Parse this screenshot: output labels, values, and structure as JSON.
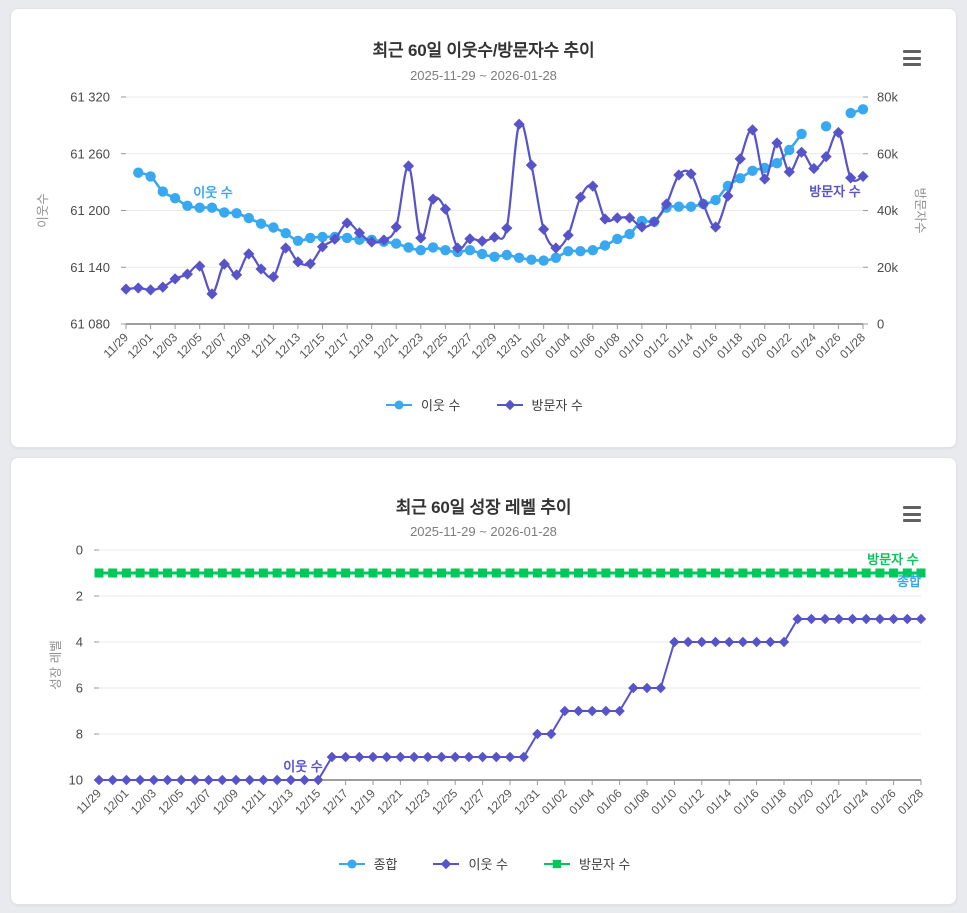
{
  "colors": {
    "neighbor_blue": "#38a8f0",
    "visitor_purple": "#5753c9",
    "visitor_green": "#03c75a",
    "grid": "#e9e9e9",
    "axis": "#3d3d3d",
    "tick_text": "#4a4a4a",
    "axis_title_text": "#909090"
  },
  "chart_data": [
    {
      "type": "line",
      "title": "최근 60일 이웃수/방문자수 추이",
      "subtitle": "2025-11-29 ~ 2026-01-28",
      "n_points": 61,
      "x_tick_labels": [
        "11/29",
        "12/01",
        "12/03",
        "12/05",
        "12/07",
        "12/09",
        "12/11",
        "12/13",
        "12/15",
        "12/17",
        "12/19",
        "12/21",
        "12/23",
        "12/25",
        "12/27",
        "12/29",
        "12/31",
        "01/02",
        "01/04",
        "01/06",
        "01/08",
        "01/10",
        "01/12",
        "01/14",
        "01/16",
        "01/18",
        "01/20",
        "01/22",
        "01/24",
        "01/26",
        "01/28"
      ],
      "y_axis_left": {
        "title": "이웃수",
        "tick_labels": [
          "61 320",
          "61 260",
          "61 200",
          "61 140",
          "61 080"
        ],
        "min": 61080,
        "max": 61320
      },
      "y_axis_right": {
        "title": "방문자수",
        "tick_labels": [
          "80k",
          "60k",
          "40k",
          "20k",
          "0"
        ],
        "min": 0,
        "max": 80000
      },
      "grid": true,
      "legend_position": "bottom",
      "series": [
        {
          "name": "이웃 수",
          "color": "#38a8f0",
          "marker": "circle",
          "axis": "left",
          "values": [
            null,
            61240,
            61236,
            61220,
            61213,
            61205,
            61203,
            61203,
            61198,
            61197,
            61192,
            61186,
            61182,
            61176,
            61168,
            61171,
            61172,
            61172,
            61171,
            61169,
            61169,
            61167,
            61165,
            61161,
            61158,
            61161,
            61158,
            61156,
            61158,
            61154,
            61151,
            61153,
            61150,
            61148,
            61147,
            61150,
            61157,
            61157,
            61158,
            61163,
            61170,
            61175,
            61189,
            61188,
            61203,
            61204,
            61204,
            61207,
            61211,
            61226,
            61234,
            61242,
            61245,
            61250,
            61264,
            61281,
            null,
            61289,
            null,
            61303,
            61307
          ]
        },
        {
          "name": "방문자 수",
          "color": "#5753c9",
          "marker": "diamond",
          "axis": "right",
          "values": [
            12300,
            12700,
            12000,
            13000,
            15900,
            17600,
            20400,
            10600,
            21100,
            17300,
            24700,
            19400,
            16600,
            26800,
            21900,
            21200,
            27200,
            29900,
            35600,
            32100,
            28900,
            29600,
            34200,
            55700,
            30300,
            44000,
            40500,
            26800,
            30000,
            29200,
            30600,
            33800,
            70400,
            56000,
            33400,
            26800,
            31300,
            44700,
            48600,
            37000,
            37400,
            37400,
            34200,
            36000,
            42300,
            52500,
            52900,
            42300,
            34200,
            45100,
            58200,
            68400,
            51100,
            63800,
            53600,
            60500,
            54800,
            59000,
            67500,
            51500,
            52000
          ]
        }
      ],
      "annotations": [
        {
          "text": "이웃 수",
          "color": "#38a8f0"
        },
        {
          "text": "방문자 수",
          "color": "#5753c9"
        }
      ]
    },
    {
      "type": "line",
      "title": "최근 60일 성장 레벨 추이",
      "subtitle": "2025-11-29 ~ 2026-01-28",
      "n_points": 61,
      "x_tick_labels": [
        "11/29",
        "12/01",
        "12/03",
        "12/05",
        "12/07",
        "12/09",
        "12/11",
        "12/13",
        "12/15",
        "12/17",
        "12/19",
        "12/21",
        "12/23",
        "12/25",
        "12/27",
        "12/29",
        "12/31",
        "01/02",
        "01/04",
        "01/06",
        "01/08",
        "01/10",
        "01/12",
        "01/14",
        "01/16",
        "01/18",
        "01/20",
        "01/22",
        "01/24",
        "01/26",
        "01/28"
      ],
      "y_axis_left": {
        "title": "성장 레벨",
        "tick_labels": [
          "0",
          "2",
          "4",
          "6",
          "8",
          "10"
        ],
        "min": 0,
        "max": 10,
        "inverted": true
      },
      "grid": true,
      "legend_position": "bottom",
      "series": [
        {
          "name": "종합",
          "color": "#38a8f0",
          "marker": "circle",
          "axis": "left",
          "values": [
            1,
            1,
            1,
            1,
            1,
            1,
            1,
            1,
            1,
            1,
            1,
            1,
            1,
            1,
            1,
            1,
            1,
            1,
            1,
            1,
            1,
            1,
            1,
            1,
            1,
            1,
            1,
            1,
            1,
            1,
            1,
            1,
            1,
            1,
            1,
            1,
            1,
            1,
            1,
            1,
            1,
            1,
            1,
            1,
            1,
            1,
            1,
            1,
            1,
            1,
            1,
            1,
            1,
            1,
            1,
            1,
            1,
            1,
            1,
            1,
            1
          ]
        },
        {
          "name": "이웃 수",
          "color": "#5753c9",
          "marker": "diamond",
          "axis": "left",
          "values": [
            10,
            10,
            10,
            10,
            10,
            10,
            10,
            10,
            10,
            10,
            10,
            10,
            10,
            10,
            10,
            10,
            10,
            9,
            9,
            9,
            9,
            9,
            9,
            9,
            9,
            9,
            9,
            9,
            9,
            9,
            9,
            9,
            8,
            8,
            7,
            7,
            7,
            7,
            7,
            6,
            6,
            6,
            4,
            4,
            4,
            4,
            4,
            4,
            4,
            4,
            4,
            3,
            3,
            3,
            3,
            3,
            3,
            3,
            3,
            3,
            3
          ]
        },
        {
          "name": "방문자 수",
          "color": "#03c75a",
          "marker": "square",
          "axis": "left",
          "values": [
            1,
            1,
            1,
            1,
            1,
            1,
            1,
            1,
            1,
            1,
            1,
            1,
            1,
            1,
            1,
            1,
            1,
            1,
            1,
            1,
            1,
            1,
            1,
            1,
            1,
            1,
            1,
            1,
            1,
            1,
            1,
            1,
            1,
            1,
            1,
            1,
            1,
            1,
            1,
            1,
            1,
            1,
            1,
            1,
            1,
            1,
            1,
            1,
            1,
            1,
            1,
            1,
            1,
            1,
            1,
            1,
            1,
            1,
            1,
            1,
            1
          ]
        }
      ],
      "annotations": [
        {
          "text": "이웃 수",
          "color": "#5753c9"
        },
        {
          "text": "방문자 수",
          "color": "#03c75a"
        },
        {
          "text": "종합",
          "color": "#38a8f0"
        }
      ]
    }
  ]
}
